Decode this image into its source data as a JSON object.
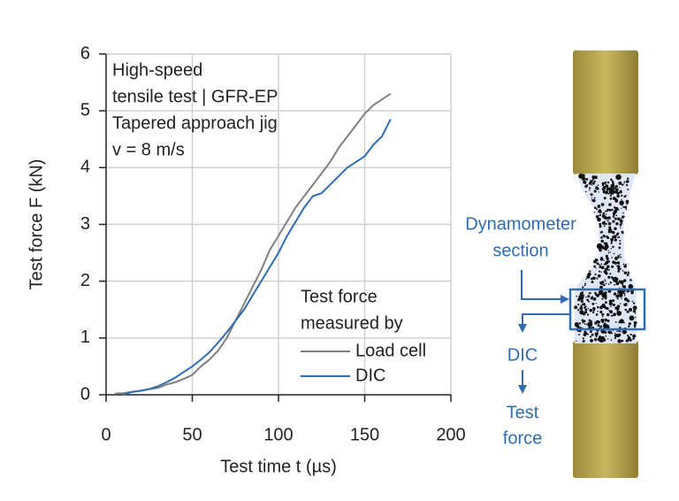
{
  "chart_data": {
    "type": "line",
    "annotation": [
      "High-speed",
      "tensile test | GFR-EP",
      "Tapered approach jig",
      "v = 8 m/s"
    ],
    "xlabel": "Test time t (µs)",
    "ylabel": "Test force F (kN)",
    "legend_title": [
      "Test force",
      "measured by"
    ],
    "legend": "lower right",
    "grid": true,
    "xlim": [
      0,
      200
    ],
    "xticks": [
      0,
      50,
      100,
      150,
      200
    ],
    "ylim": [
      0,
      6
    ],
    "yticks": [
      0,
      1,
      2,
      3,
      4,
      5,
      6
    ],
    "x": [
      5,
      10,
      15,
      20,
      25,
      30,
      35,
      40,
      45,
      50,
      55,
      60,
      65,
      70,
      75,
      80,
      85,
      90,
      95,
      100,
      105,
      110,
      115,
      120,
      125,
      130,
      135,
      140,
      145,
      150,
      155,
      160,
      165
    ],
    "series": [
      {
        "name": "Load cell",
        "color": "#808080",
        "values": [
          0.02,
          0.03,
          0.05,
          0.07,
          0.1,
          0.12,
          0.18,
          0.22,
          0.28,
          0.35,
          0.5,
          0.62,
          0.78,
          1.0,
          1.3,
          1.6,
          1.9,
          2.2,
          2.55,
          2.8,
          3.05,
          3.3,
          3.5,
          3.7,
          3.9,
          4.1,
          4.35,
          4.55,
          4.75,
          4.95,
          5.1,
          5.2,
          5.3
        ]
      },
      {
        "name": "DIC",
        "color": "#2e6db4",
        "values": [
          null,
          0.0,
          0.05,
          0.07,
          0.1,
          0.15,
          0.22,
          0.3,
          0.4,
          0.5,
          0.62,
          0.75,
          0.92,
          1.1,
          1.3,
          1.5,
          1.75,
          2.0,
          2.25,
          2.5,
          2.8,
          3.05,
          3.3,
          3.5,
          3.55,
          3.7,
          3.85,
          4.0,
          4.1,
          4.2,
          4.4,
          4.55,
          4.85
        ]
      }
    ]
  },
  "diagram": {
    "section_label": [
      "Dynamometer",
      "section"
    ],
    "flow": [
      "DIC",
      "Test",
      "force"
    ]
  }
}
